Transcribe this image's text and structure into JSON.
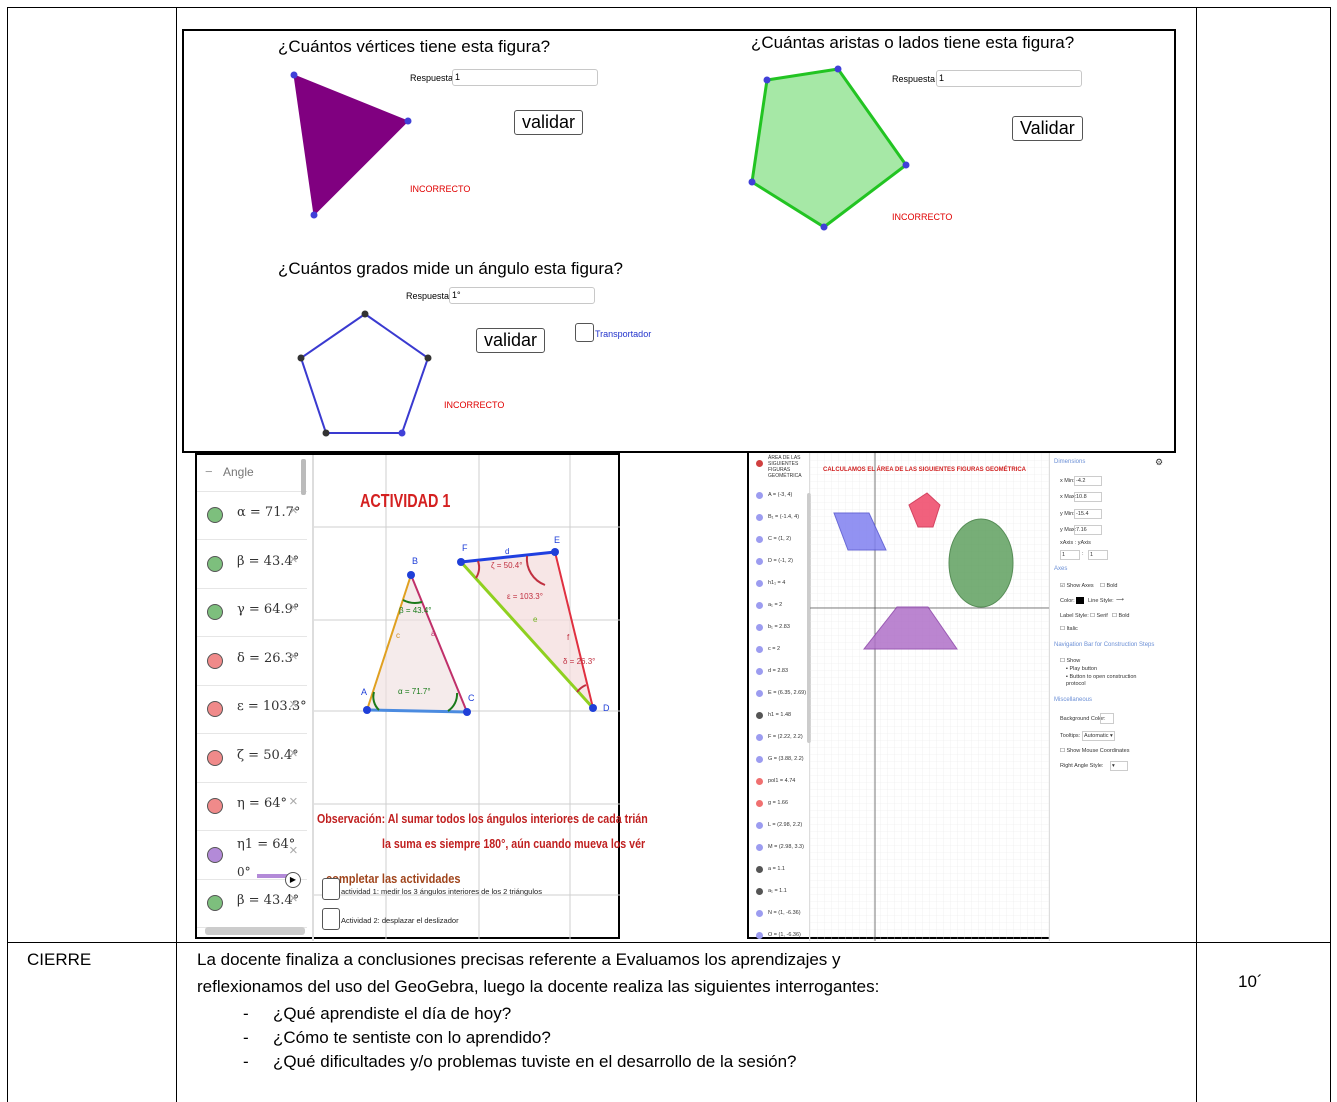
{
  "panel1": {
    "question1": "¿Cuántos vértices tiene esta figura?",
    "question2": "¿Cuántas aristas o lados tiene esta figura?",
    "question3": "¿Cuántos grados mide un ángulo esta figura?",
    "answer_label": "Respuesta",
    "answer1": "1",
    "answer2": "1",
    "answer3": "1°",
    "validate_lower": "validar",
    "validate_upper": "Validar",
    "incorrect": "INCORRECTO",
    "protractor": "Transportador",
    "colors": {
      "triangle": "#800080",
      "hexagon_fill": "#a6e8a6",
      "hexagon_stroke": "#22c422",
      "pentagon_stroke": "#3a3ad0",
      "error": "#e00000"
    }
  },
  "panel2": {
    "algebra_header": "Angle",
    "angles": [
      {
        "text": "α = 71.7°",
        "color": "#7dbf7d"
      },
      {
        "text": "β = 43.4°",
        "color": "#7dbf7d"
      },
      {
        "text": "γ = 64.9°",
        "color": "#7dbf7d"
      },
      {
        "text": "δ = 26.3°",
        "color": "#f08a8a"
      },
      {
        "text": "ε = 103.3°",
        "color": "#f08a8a"
      },
      {
        "text": "ζ = 50.4°",
        "color": "#f08a8a"
      },
      {
        "text": "η = 64°",
        "color": "#f08a8a"
      },
      {
        "text": "η1 = 64°",
        "color": "#b38ad8"
      },
      {
        "text": "β = 43.4°",
        "color": "#7dbf7d"
      }
    ],
    "slider_value": "0°",
    "title": "ACTIVIDAD 1",
    "observation_line1": "Observación: Al sumar todos los ángulos interiores de cada trián",
    "observation_line2": "la suma es siempre 180°, aún cuando mueva los vér",
    "complete": "completar las actividades",
    "activity1": "actividad 1:  medir los 3 ángulos interiores de los 2 triángulos",
    "activity2": "Actividad 2: desplazar el deslizador",
    "vertices": [
      "A",
      "B",
      "C",
      "D",
      "E",
      "F"
    ],
    "sides": [
      "a",
      "c",
      "d",
      "e",
      "f"
    ],
    "angle_labels": [
      "β = 43.4°",
      "α = 71.7°",
      "ζ = 50.4°",
      "ε = 103.3°",
      "δ = 26.3°"
    ]
  },
  "panel3": {
    "algebra_title": "ÁREA DE LAS SIGUIENTES FIGURAS GEOMÉTRICA",
    "algebra_items": [
      {
        "text": "A = (-3, 4)",
        "color": "#9c9cf0"
      },
      {
        "text": "B₁ = (-1.4, 4)",
        "color": "#9c9cf0"
      },
      {
        "text": "C = (1, 2)",
        "color": "#9c9cf0"
      },
      {
        "text": "D = (-1, 2)",
        "color": "#9c9cf0"
      },
      {
        "text": "h1₁ = 4",
        "color": "#9c9cf0"
      },
      {
        "text": "a₁ = 2",
        "color": "#9c9cf0"
      },
      {
        "text": "b₁ = 2.83",
        "color": "#9c9cf0"
      },
      {
        "text": "c = 2",
        "color": "#9c9cf0"
      },
      {
        "text": "d = 2.83",
        "color": "#9c9cf0"
      },
      {
        "text": "E = (6.35, 2.69)",
        "color": "#9c9cf0"
      },
      {
        "text": "h1 = 1.48",
        "color": "#555555"
      },
      {
        "text": "F = (2.22, 2.2)",
        "color": "#9c9cf0"
      },
      {
        "text": "G = (3.88, 2.2)",
        "color": "#9c9cf0"
      },
      {
        "text": "pol1 = 4.74",
        "color": "#f07070"
      },
      {
        "text": "g = 1.66",
        "color": "#f07070"
      },
      {
        "text": "L = (2.98, 2.2)",
        "color": "#9c9cf0"
      },
      {
        "text": "M = (2.98, 3.3)",
        "color": "#9c9cf0"
      },
      {
        "text": "a = 1.1",
        "color": "#555555"
      },
      {
        "text": "a₁ = 1.1",
        "color": "#555555"
      },
      {
        "text": "N = (1, -6.36)",
        "color": "#9c9cf0"
      },
      {
        "text": "O = (1, -6.36)",
        "color": "#9c9cf0"
      }
    ],
    "graph_title": "CALCULAMOS EL ÁREA DE LAS SIGUIENTES FIGURAS GEOMÉTRICA",
    "settings": {
      "dimensions": "Dimensions",
      "xmin_label": "x Min:",
      "xmin": "-4.2",
      "xmax_label": "x Max:",
      "xmax": "10.8",
      "ymin_label": "y Min:",
      "ymin": "-15.4",
      "ymax_label": "y Max:",
      "ymax": "7.16",
      "xaxis_yaxis": "xAxis : yAxis",
      "ratio1": "1",
      "ratio_sep": ":",
      "ratio2": "1",
      "axes": "Axes",
      "show_axes": "Show Axes",
      "bold": "Bold",
      "color": "Color:",
      "line_style": "Line Style:",
      "label_style": "Label Style:",
      "serif": "Serif",
      "italic": "Italic",
      "nav_bar": "Navigation Bar for Construction Steps",
      "show": "Show",
      "play_button": "Play button",
      "button_open": "Button to open construction protocol",
      "misc": "Miscellaneous",
      "bg_color": "Background Color:",
      "tooltips": "Tooltips:",
      "tooltips_value": "Automatic",
      "show_mouse": "Show Mouse Coordinates",
      "right_angle": "Right Angle Style:"
    }
  },
  "cierre": {
    "label": "CIERRE",
    "line1": "La docente finaliza a conclusiones precisas referente a Evaluamos los aprendizajes y",
    "line2": "reflexionamos del uso del GeoGebra, luego la docente realiza las siguientes interrogantes:",
    "bullets": [
      "¿Qué aprendiste el día de hoy?",
      "¿Cómo te sentiste con lo aprendido?",
      "¿Qué dificultades y/o problemas tuviste en el desarrollo de la sesión?"
    ],
    "bullet_mark": "-",
    "time": "10´"
  }
}
